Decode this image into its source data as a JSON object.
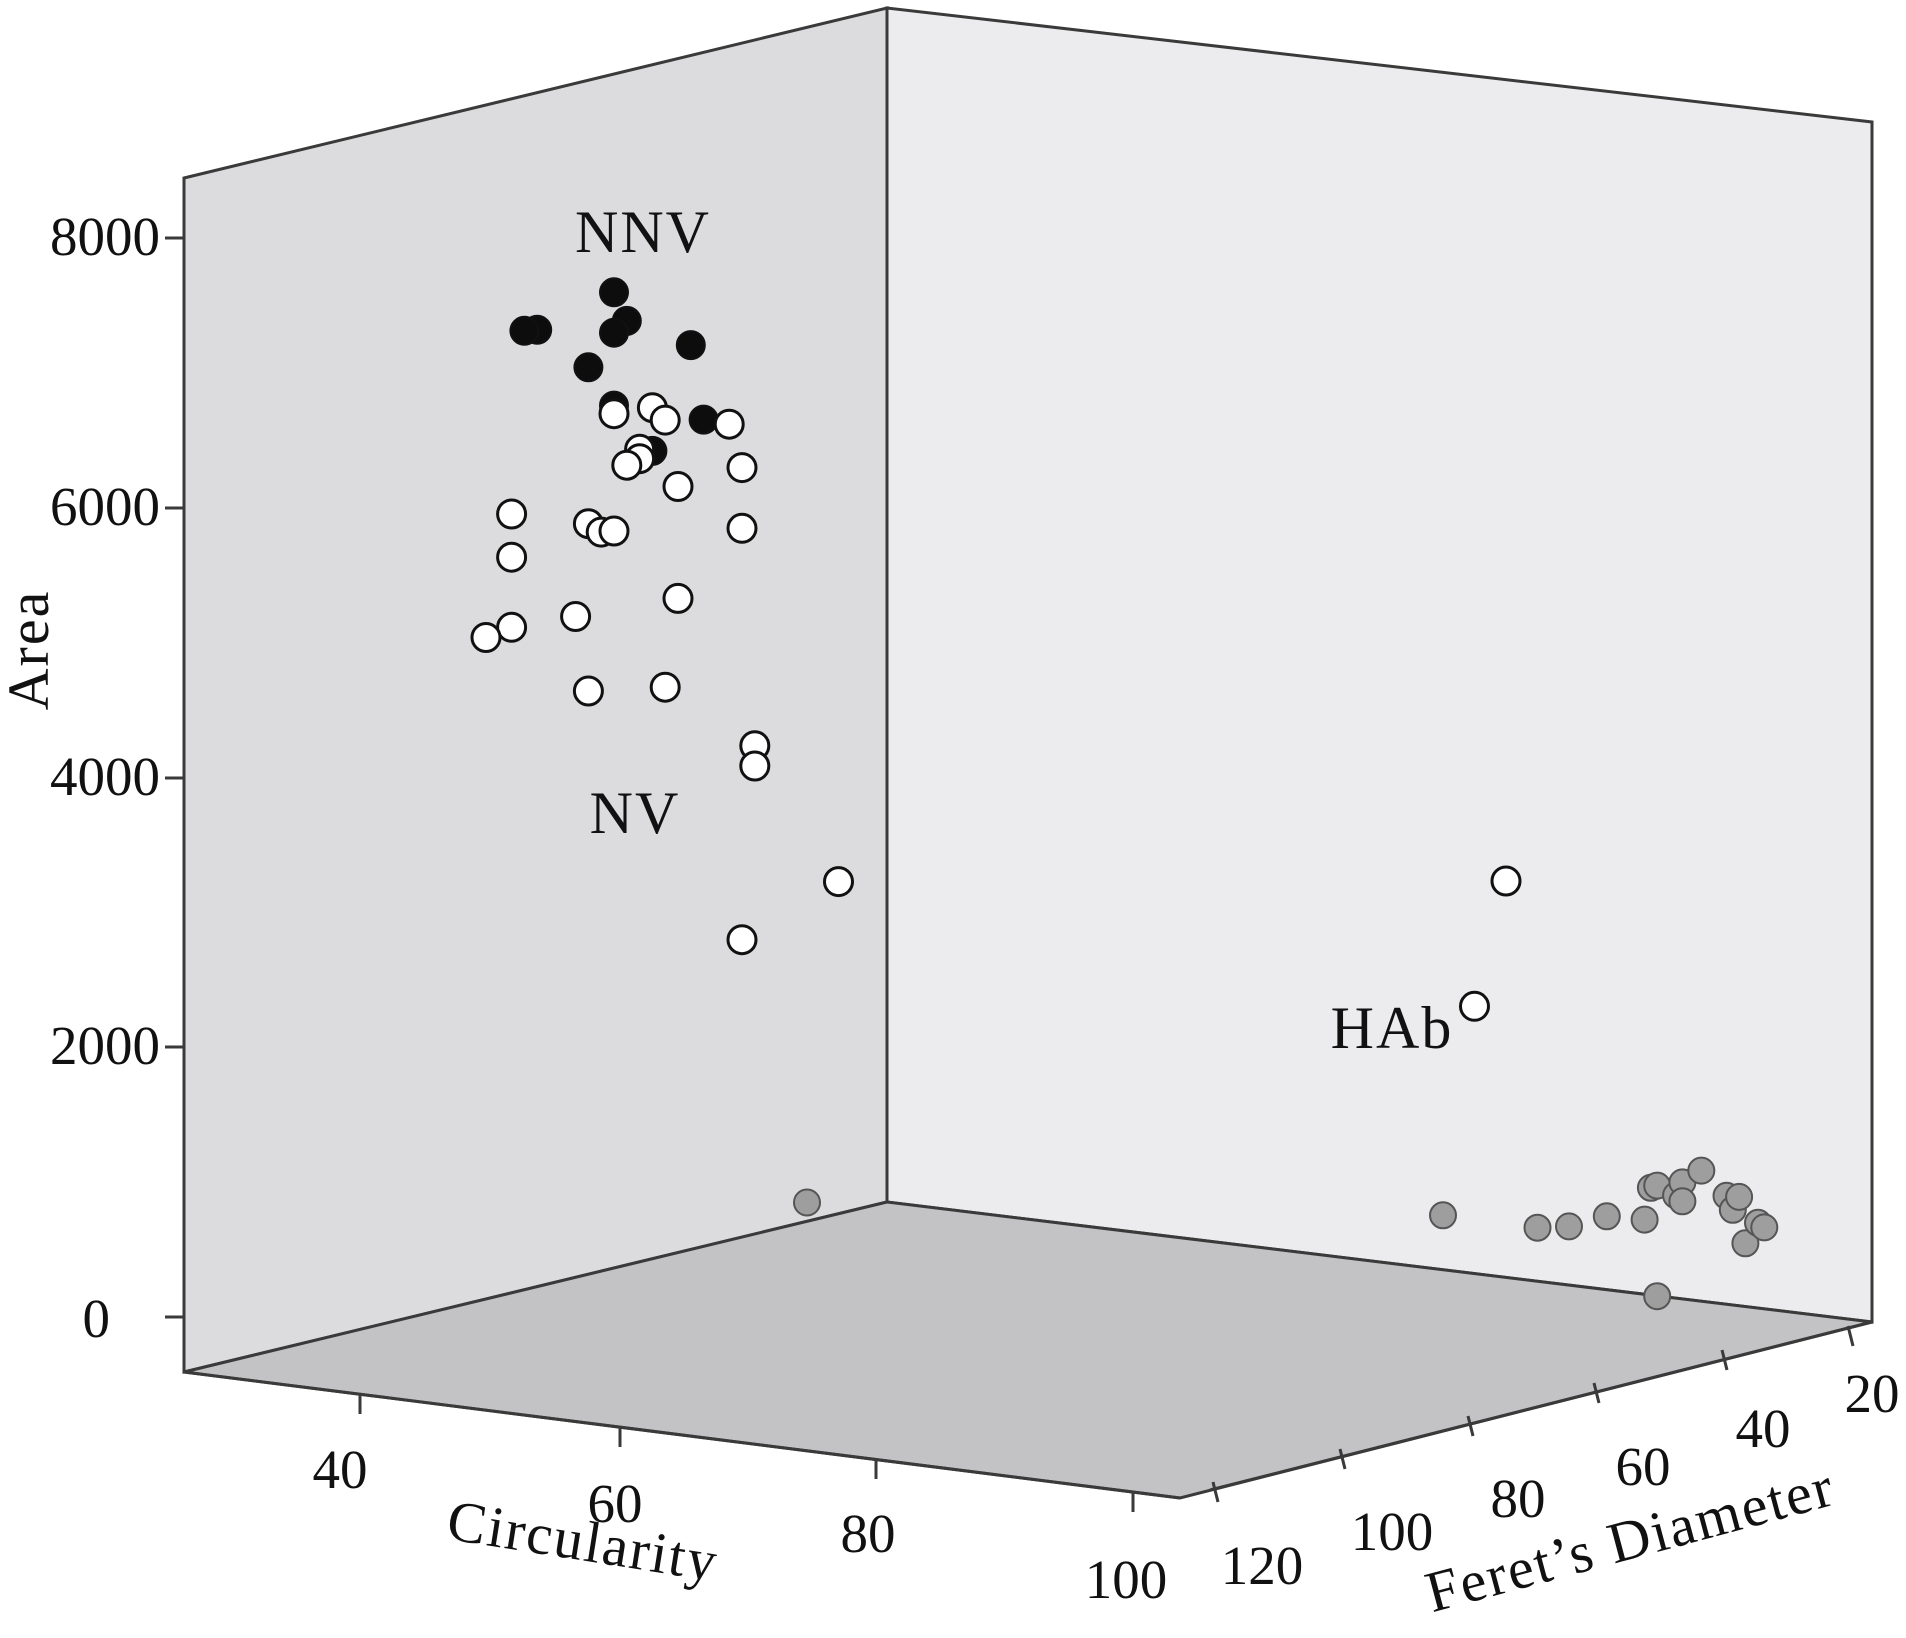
{
  "chart_data": {
    "type": "scatter",
    "projection": "3d",
    "axes": {
      "y": {
        "label": "Area",
        "ticks": [
          "0",
          "2000",
          "4000",
          "6000",
          "8000"
        ],
        "range": [
          0,
          8000
        ]
      },
      "x": {
        "label": "Circularity",
        "ticks": [
          "40",
          "60",
          "80",
          "100"
        ]
      },
      "z": {
        "label": "Feret’s Diameter",
        "ticks": [
          "120",
          "100",
          "80",
          "60",
          "40",
          "20"
        ]
      }
    },
    "colors": {
      "NNV": "#0d0d0d",
      "NV": "#ffffff",
      "HAb": "#9e9e9e"
    },
    "clusters": [
      {
        "label": "NNV",
        "fill": "#0d0d0d"
      },
      {
        "label": "NV",
        "fill": "#ffffff"
      },
      {
        "label": "HAb",
        "fill": "#9e9e9e"
      }
    ],
    "points": [
      {
        "group": "NNV",
        "circ": 50,
        "area": 7600,
        "feret": 100
      },
      {
        "group": "NNV",
        "circ": 51,
        "area": 7400,
        "feret": 100
      },
      {
        "group": "NNV",
        "circ": 50,
        "area": 7300,
        "feret": 100
      },
      {
        "group": "NNV",
        "circ": 44,
        "area": 7250,
        "feret": 100
      },
      {
        "group": "NNV",
        "circ": 43,
        "area": 7230,
        "feret": 100
      },
      {
        "group": "NNV",
        "circ": 56,
        "area": 7280,
        "feret": 100
      },
      {
        "group": "NNV",
        "circ": 48,
        "area": 7020,
        "feret": 100
      },
      {
        "group": "NNV",
        "circ": 50,
        "area": 6760,
        "feret": 100
      },
      {
        "group": "NNV",
        "circ": 57,
        "area": 6740,
        "feret": 100
      },
      {
        "group": "NNV",
        "circ": 53,
        "area": 6460,
        "feret": 100
      },
      {
        "group": "NV",
        "circ": 53,
        "area": 6780,
        "feret": 100
      },
      {
        "group": "NV",
        "circ": 54,
        "area": 6700,
        "feret": 100
      },
      {
        "group": "NV",
        "circ": 59,
        "area": 6730,
        "feret": 100
      },
      {
        "group": "NV",
        "circ": 50,
        "area": 6700,
        "feret": 100
      },
      {
        "group": "NV",
        "circ": 52,
        "area": 6460,
        "feret": 100
      },
      {
        "group": "NV",
        "circ": 52,
        "area": 6390,
        "feret": 100
      },
      {
        "group": "NV",
        "circ": 51,
        "area": 6330,
        "feret": 100
      },
      {
        "group": "NV",
        "circ": 60,
        "area": 6420,
        "feret": 100
      },
      {
        "group": "NV",
        "circ": 55,
        "area": 6220,
        "feret": 100
      },
      {
        "group": "NV",
        "circ": 60,
        "area": 5970,
        "feret": 100
      },
      {
        "group": "NV",
        "circ": 42,
        "area": 5860,
        "feret": 100
      },
      {
        "group": "NV",
        "circ": 48,
        "area": 5860,
        "feret": 100
      },
      {
        "group": "NV",
        "circ": 49,
        "area": 5810,
        "feret": 100
      },
      {
        "group": "NV",
        "circ": 50,
        "area": 5830,
        "feret": 100
      },
      {
        "group": "NV",
        "circ": 42,
        "area": 5540,
        "feret": 100
      },
      {
        "group": "NV",
        "circ": 55,
        "area": 5390,
        "feret": 100
      },
      {
        "group": "NV",
        "circ": 47,
        "area": 5160,
        "feret": 100
      },
      {
        "group": "NV",
        "circ": 42,
        "area": 5020,
        "feret": 100
      },
      {
        "group": "NV",
        "circ": 40,
        "area": 4920,
        "feret": 100
      },
      {
        "group": "NV",
        "circ": 54,
        "area": 4720,
        "feret": 100
      },
      {
        "group": "NV",
        "circ": 48,
        "area": 4620,
        "feret": 100
      },
      {
        "group": "NV",
        "circ": 61,
        "area": 4370,
        "feret": 100
      },
      {
        "group": "NV",
        "circ": 61,
        "area": 4220,
        "feret": 100
      },
      {
        "group": "NV",
        "circ": 60,
        "area": 2920,
        "feret": 100
      },
      {
        "group": "NV",
        "circ": 70,
        "area": 3500,
        "feret": 105
      },
      {
        "group": "NV",
        "circ": 100,
        "area": 3600,
        "feret": 60
      },
      {
        "group": "NV",
        "circ": 100,
        "area": 2700,
        "feret": 65
      },
      {
        "group": "HAb",
        "circ": 70,
        "area": 1150,
        "feret": 110
      },
      {
        "group": "HAb",
        "circ": 100,
        "area": 1180,
        "feret": 70
      },
      {
        "group": "HAb",
        "circ": 100,
        "area": 1000,
        "feret": 55
      },
      {
        "group": "HAb",
        "circ": 100,
        "area": 980,
        "feret": 50
      },
      {
        "group": "HAb",
        "circ": 100,
        "area": 1020,
        "feret": 44
      },
      {
        "group": "HAb",
        "circ": 100,
        "area": 960,
        "feret": 38
      },
      {
        "group": "HAb",
        "circ": 100,
        "area": 1190,
        "feret": 37
      },
      {
        "group": "HAb",
        "circ": 100,
        "area": 1200,
        "feret": 36
      },
      {
        "group": "HAb",
        "circ": 100,
        "area": 1110,
        "feret": 33
      },
      {
        "group": "HAb",
        "circ": 100,
        "area": 1200,
        "feret": 32
      },
      {
        "group": "HAb",
        "circ": 100,
        "area": 1060,
        "feret": 32
      },
      {
        "group": "HAb",
        "circ": 100,
        "area": 1270,
        "feret": 29
      },
      {
        "group": "HAb",
        "circ": 100,
        "area": 1060,
        "feret": 25
      },
      {
        "group": "HAb",
        "circ": 100,
        "area": 950,
        "feret": 24
      },
      {
        "group": "HAb",
        "circ": 100,
        "area": 1040,
        "feret": 23
      },
      {
        "group": "HAb",
        "circ": 100,
        "area": 690,
        "feret": 22
      },
      {
        "group": "HAb",
        "circ": 100,
        "area": 830,
        "feret": 20
      },
      {
        "group": "HAb",
        "circ": 100,
        "area": 790,
        "feret": 19
      },
      {
        "group": "HAb",
        "circ": 100,
        "area": 380,
        "feret": 36
      }
    ]
  }
}
